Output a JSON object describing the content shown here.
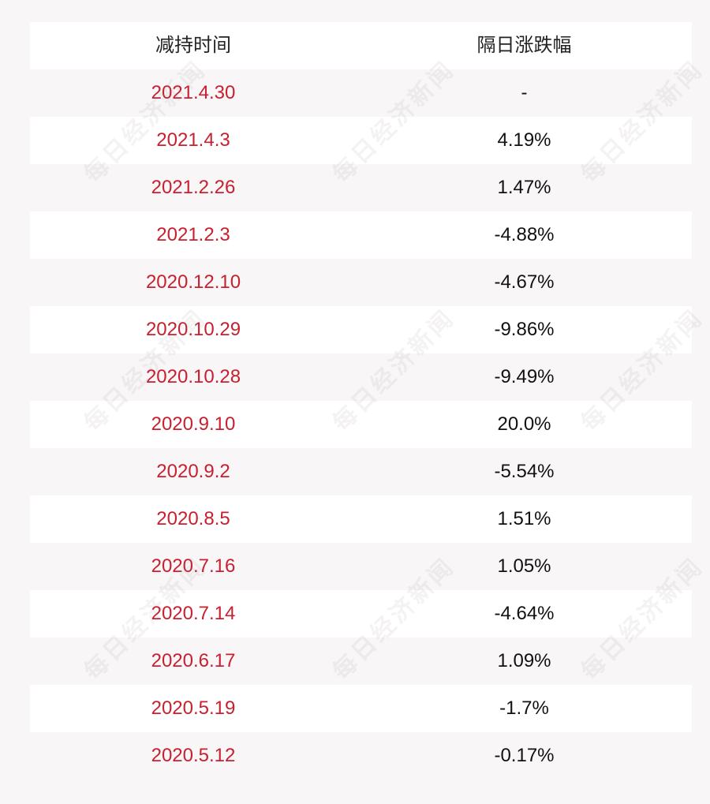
{
  "watermark_text": "每日经济新闻",
  "table": {
    "headers": {
      "date": "减持时间",
      "change": "隔日涨跌幅"
    },
    "rows": [
      {
        "date": "2021.4.30",
        "change": "-"
      },
      {
        "date": "2021.4.3",
        "change": "4.19%"
      },
      {
        "date": "2021.2.26",
        "change": "1.47%"
      },
      {
        "date": "2021.2.3",
        "change": "-4.88%"
      },
      {
        "date": "2020.12.10",
        "change": "-4.67%"
      },
      {
        "date": "2020.10.29",
        "change": "-9.86%"
      },
      {
        "date": "2020.10.28",
        "change": "-9.49%"
      },
      {
        "date": "2020.9.10",
        "change": "20.0%"
      },
      {
        "date": "2020.9.2",
        "change": "-5.54%"
      },
      {
        "date": "2020.8.5",
        "change": "1.51%"
      },
      {
        "date": "2020.7.16",
        "change": "1.05%"
      },
      {
        "date": "2020.7.14",
        "change": "-4.64%"
      },
      {
        "date": "2020.6.17",
        "change": "1.09%"
      },
      {
        "date": "2020.5.19",
        "change": "-1.7%"
      },
      {
        "date": "2020.5.12",
        "change": "-0.17%"
      }
    ]
  },
  "colors": {
    "date_text": "#c8202f",
    "change_text": "#111111",
    "header_text": "#222222",
    "row_white": "#ffffff",
    "row_tinted": "#f8f6f7"
  }
}
